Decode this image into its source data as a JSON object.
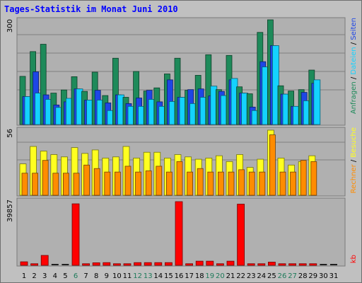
{
  "title": "Tages-Statistik im Monat Juni 2010",
  "colors": {
    "anfragen": "#1e8a5a",
    "dateien": "#1e46e6",
    "seiten": "#14d2ff",
    "besuche": "#ffff20",
    "rechner": "#ff8c00",
    "kb": "#ff0000",
    "weekend_label": "#1e7a5a",
    "day_label": "#000000"
  },
  "chart_data": [
    {
      "type": "bar",
      "name": "hits-files-pages",
      "y_tick_label": "300",
      "ymax": 300,
      "categories": [
        "1",
        "2",
        "3",
        "4",
        "5",
        "6",
        "7",
        "8",
        "9",
        "10",
        "11",
        "12",
        "13",
        "14",
        "15",
        "16",
        "17",
        "18",
        "19",
        "20",
        "21",
        "22",
        "23",
        "24",
        "25",
        "26",
        "27",
        "28",
        "29",
        "30",
        "31"
      ],
      "weekend_days": [
        "6",
        "12",
        "13",
        "19",
        "20",
        "26",
        "27"
      ],
      "series_labels": [
        "Anfragen",
        "Dateien",
        "Seiten"
      ],
      "series_label_colors": [
        "#1e8a5a",
        "#14d2ff",
        "#1e46e6"
      ],
      "series": [
        {
          "name": "Anfragen",
          "values": [
            138,
            209,
            230,
            90,
            99,
            137,
            95,
            150,
            83,
            190,
            78,
            152,
            96,
            105,
            145,
            190,
            98,
            141,
            200,
            100,
            198,
            108,
            88,
            264,
            300,
            111,
            96,
            100,
            156,
            0,
            0
          ]
        },
        {
          "name": "Dateien",
          "values": [
            80,
            151,
            85,
            56,
            65,
            102,
            70,
            98,
            62,
            85,
            60,
            76,
            98,
            65,
            128,
            78,
            100,
            102,
            82,
            95,
            128,
            90,
            50,
            180,
            226,
            87,
            52,
            92,
            118,
            0,
            0
          ]
        },
        {
          "name": "Seiten",
          "values": [
            80,
            90,
            72,
            49,
            75,
            102,
            70,
            70,
            40,
            85,
            52,
            52,
            72,
            52,
            66,
            78,
            60,
            78,
            110,
            83,
            132,
            90,
            40,
            165,
            226,
            87,
            52,
            68,
            128,
            0,
            0
          ]
        }
      ]
    },
    {
      "type": "bar",
      "name": "visits-hosts",
      "y_tick_label": "56",
      "ymax": 56,
      "series_labels": [
        "Rechner",
        "Besuche"
      ],
      "series_label_colors": [
        "#ff8c00",
        "#ffff20"
      ],
      "series": [
        {
          "name": "Besuche",
          "values": [
            27,
            42,
            38,
            35,
            33,
            41,
            36,
            39,
            32,
            33,
            42,
            32,
            37,
            37,
            32,
            35,
            33,
            31,
            32,
            34,
            29,
            35,
            24,
            31,
            56,
            32,
            26,
            29,
            34,
            0,
            0
          ]
        },
        {
          "name": "Rechner",
          "values": [
            19,
            19,
            30,
            19,
            19,
            19,
            26,
            23,
            20,
            20,
            25,
            20,
            21,
            25,
            20,
            29,
            20,
            23,
            20,
            20,
            20,
            22,
            20,
            20,
            52,
            20,
            20,
            30,
            29,
            0,
            0
          ]
        }
      ]
    },
    {
      "type": "bar",
      "name": "kb",
      "y_tick_label": "39857",
      "ymax": 39857,
      "series_labels": [
        "kb"
      ],
      "series_label_colors": [
        "#ff0000"
      ],
      "series": [
        {
          "name": "kb",
          "values": [
            2200,
            1000,
            6200,
            0,
            0,
            38500,
            1000,
            1600,
            1700,
            1000,
            1000,
            1700,
            1700,
            1700,
            1700,
            39857,
            1000,
            2600,
            2600,
            1000,
            2600,
            38300,
            1000,
            1000,
            2000,
            1000,
            1000,
            1000,
            1000,
            0,
            0
          ]
        }
      ]
    }
  ]
}
